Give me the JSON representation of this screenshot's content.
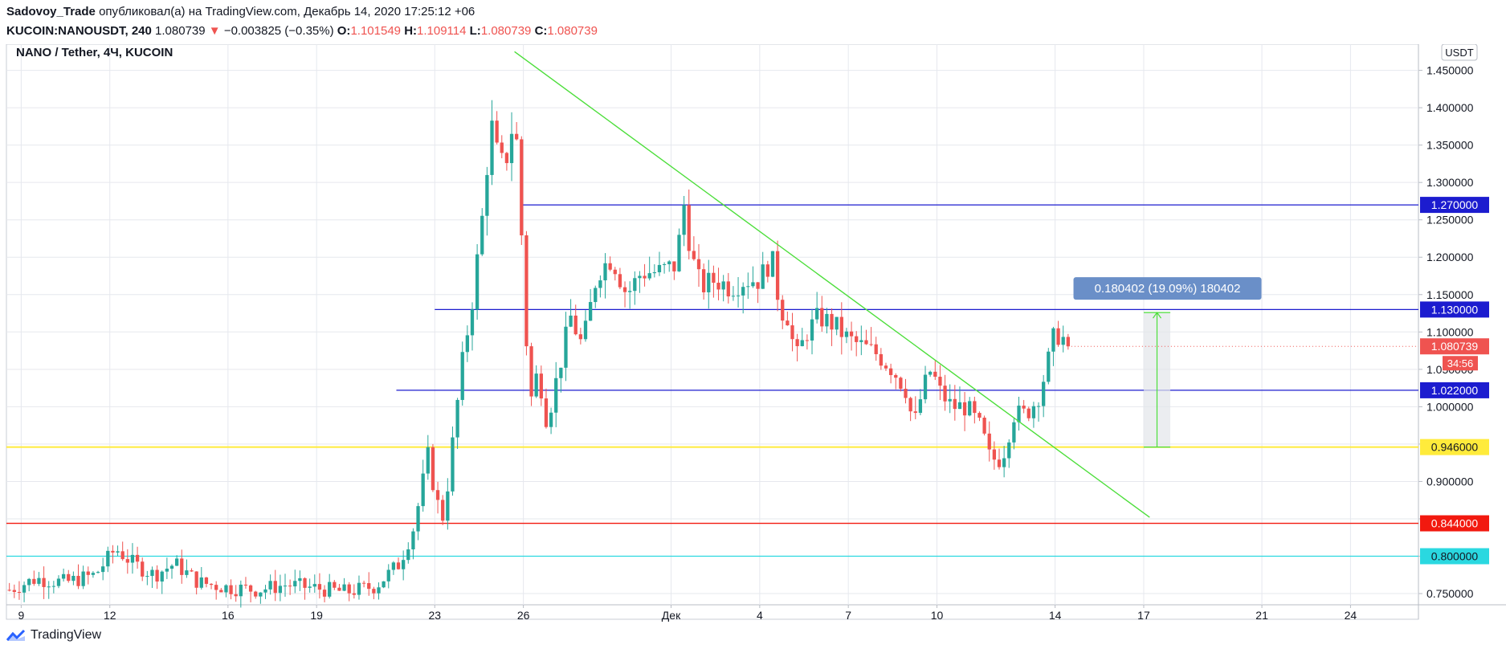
{
  "header": {
    "author": "Sadovoy_Trade",
    "published_text": "опубликовал(а) на TradingView.com, Декабрь 14, 2020 17:25:12 +06",
    "symbol": "KUCOIN:NANOUSDT, 240",
    "last_price": "1.080739",
    "change_arrow": "▼",
    "change": "−0.003825 (−0.35%)",
    "o_label": "O:",
    "o_value": "1.101549",
    "h_label": "H:",
    "h_value": "1.109114",
    "l_label": "L:",
    "l_value": "1.080739",
    "c_label": "C:",
    "c_value": "1.080739"
  },
  "legend": "NANO / Tether, 4Ч, KUCOIN",
  "currency_badge": "USDT",
  "footer_brand": "TradingView",
  "colors": {
    "up": "#26a69a",
    "down": "#ef5350",
    "grid": "#e6e8ee",
    "trendline": "#4cde3a",
    "blue_level": "#1c1ccf",
    "yellow_level": "#ffeb3b",
    "red_level": "#f2190f",
    "cyan_level": "#2ad8e0",
    "measure_bg": "#6a8fc8"
  },
  "chart_data": {
    "type": "candlestick",
    "title": "NANO / Tether, 4Ч, KUCOIN",
    "ylim": [
      0.735,
      1.485
    ],
    "y_ticks": [
      0.75,
      0.8,
      0.85,
      0.9,
      0.95,
      1.0,
      1.05,
      1.1,
      1.15,
      1.2,
      1.25,
      1.3,
      1.35,
      1.4,
      1.45
    ],
    "y_tick_labels": [
      "0.750000",
      "",
      "",
      "0.900000",
      "",
      "1.000000",
      "1.050000",
      "1.100000",
      "1.150000",
      "1.200000",
      "1.250000",
      "1.300000",
      "1.350000",
      "1.400000",
      "1.450000"
    ],
    "x_ticks": [
      {
        "x": 9,
        "label": "9"
      },
      {
        "x": 12,
        "label": "12"
      },
      {
        "x": 16,
        "label": "16"
      },
      {
        "x": 19,
        "label": "19"
      },
      {
        "x": 23,
        "label": "23"
      },
      {
        "x": 26,
        "label": "26"
      },
      {
        "x": 31,
        "label": "Дек"
      },
      {
        "x": 34,
        "label": "4"
      },
      {
        "x": 37,
        "label": "7"
      },
      {
        "x": 40,
        "label": "10"
      },
      {
        "x": 44,
        "label": "14"
      },
      {
        "x": 47,
        "label": "17"
      },
      {
        "x": 51,
        "label": "21"
      },
      {
        "x": 54,
        "label": "24"
      }
    ],
    "xlim": [
      8.5,
      56.3
    ],
    "grid": true,
    "price_points": [
      [
        8.6,
        0.755
      ],
      [
        9.5,
        0.77
      ],
      [
        10.5,
        0.765
      ],
      [
        11.5,
        0.775
      ],
      [
        12.2,
        0.81
      ],
      [
        12.8,
        0.79
      ],
      [
        13.5,
        0.775
      ],
      [
        14.2,
        0.79
      ],
      [
        15,
        0.765
      ],
      [
        16,
        0.758
      ],
      [
        17,
        0.755
      ],
      [
        18,
        0.762
      ],
      [
        19,
        0.757
      ],
      [
        20,
        0.752
      ],
      [
        21,
        0.76
      ],
      [
        21.8,
        0.79
      ],
      [
        22.3,
        0.84
      ],
      [
        22.8,
        0.94
      ],
      [
        23,
        0.88
      ],
      [
        23.3,
        0.85
      ],
      [
        23.6,
        0.95
      ],
      [
        23.9,
        1.05
      ],
      [
        24.3,
        1.15
      ],
      [
        24.6,
        1.25
      ],
      [
        24.9,
        1.38
      ],
      [
        25.2,
        1.32
      ],
      [
        25.5,
        1.34
      ],
      [
        25.7,
        1.4
      ],
      [
        25.85,
        1.3
      ],
      [
        26.0,
        1.18
      ],
      [
        26.2,
        1.0
      ],
      [
        26.5,
        1.05
      ],
      [
        26.8,
        0.98
      ],
      [
        27.2,
        1.05
      ],
      [
        27.6,
        1.12
      ],
      [
        28.0,
        1.08
      ],
      [
        28.5,
        1.18
      ],
      [
        29,
        1.2
      ],
      [
        29.5,
        1.15
      ],
      [
        30,
        1.18
      ],
      [
        30.6,
        1.18
      ],
      [
        31.2,
        1.19
      ],
      [
        31.4,
        1.28
      ],
      [
        31.7,
        1.2
      ],
      [
        32,
        1.16
      ],
      [
        32.5,
        1.17
      ],
      [
        33,
        1.16
      ],
      [
        33.5,
        1.17
      ],
      [
        34,
        1.17
      ],
      [
        34.4,
        1.2
      ],
      [
        34.7,
        1.13
      ],
      [
        35,
        1.12
      ],
      [
        35.2,
        1.06
      ],
      [
        35.6,
        1.1
      ],
      [
        36,
        1.12
      ],
      [
        36.5,
        1.11
      ],
      [
        37,
        1.09
      ],
      [
        37.5,
        1.08
      ],
      [
        38,
        1.07
      ],
      [
        38.5,
        1.05
      ],
      [
        39,
        1.02
      ],
      [
        39.2,
        0.97
      ],
      [
        39.5,
        1.02
      ],
      [
        39.8,
        1.05
      ],
      [
        40.1,
        1.02
      ],
      [
        40.5,
        1.0
      ],
      [
        41,
        1.0
      ],
      [
        41.5,
        0.97
      ],
      [
        41.8,
        0.93
      ],
      [
        42.2,
        0.93
      ],
      [
        42.6,
        0.99
      ],
      [
        43,
        0.99
      ],
      [
        43.4,
        1.01
      ],
      [
        43.7,
        1.05
      ],
      [
        44,
        1.1
      ],
      [
        44.3,
        1.09
      ],
      [
        44.5,
        1.1
      ],
      [
        44.55,
        1.080739
      ]
    ],
    "drawings": {
      "horizontal_levels": [
        {
          "value": 1.27,
          "label": "1.270000",
          "color": "#1c1ccf",
          "from_x": 25.9
        },
        {
          "value": 1.13,
          "label": "1.130000",
          "color": "#1c1ccf",
          "from_x": 23.0
        },
        {
          "value": 1.022,
          "label": "1.022000",
          "color": "#1c1ccf",
          "from_x": 21.7
        },
        {
          "value": 0.946,
          "label": "0.946000",
          "color": "#ffeb3b",
          "from_x": 8.5
        },
        {
          "value": 0.844,
          "label": "0.844000",
          "color": "#f2190f",
          "from_x": 8.5
        },
        {
          "value": 0.8,
          "label": "0.800000",
          "color": "#2ad8e0",
          "from_x": 8.5
        }
      ],
      "trendline": {
        "from": [
          25.7,
          1.475
        ],
        "to": [
          47.2,
          0.852
        ]
      },
      "measure": {
        "from": 0.946,
        "to": 1.126,
        "x0": 47.0,
        "x1": 47.9,
        "label": "0.180402 (19.09%) 180402"
      },
      "current_price": {
        "value": 1.080739,
        "label": "1.080739",
        "countdown": "34:56"
      }
    }
  }
}
